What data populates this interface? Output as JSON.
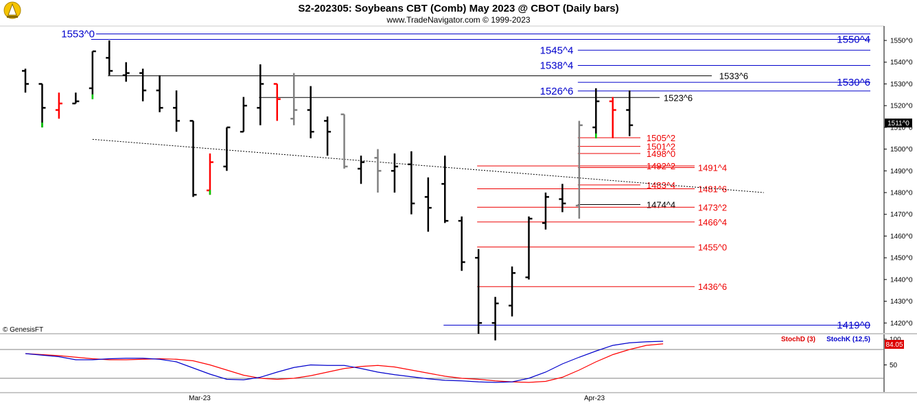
{
  "header": {
    "title": "S2-202305:  Soybeans CBT (Comb) May 2023 @ CBOT  (Daily bars)",
    "subtitle": "www.TradeNavigator.com © 1999-2023",
    "logo_icon": "trading-logo-icon"
  },
  "footer": {
    "copyright": "© GenesisFT"
  },
  "colors": {
    "background": "#ffffff",
    "bar_default": "#000000",
    "bar_gray": "#808080",
    "bar_red": "#ff0000",
    "bar_green": "#00cc00",
    "level_blue": "#0000cc",
    "level_red": "#ee0000",
    "level_black": "#000000",
    "stoch_d": "#dd0000",
    "stoch_k": "#0000cc",
    "last_price_bg": "#000000"
  },
  "last_price_tag": "1511^0",
  "chart_data": [
    {
      "type": "ohlc",
      "title": "S2-202305:  Soybeans CBT (Comb) May 2023 @ CBOT  (Daily bars)",
      "x_tick_labels": [
        "Mar-23",
        "Apr-23"
      ],
      "y_tick_labels": [
        "1550^0",
        "1540^0",
        "1530^0",
        "1520^0",
        "1510^0",
        "1500^0",
        "1490^0",
        "1480^0",
        "1470^0",
        "1460^0",
        "1450^0",
        "1440^0",
        "1430^0",
        "1420^0"
      ],
      "y_ticks": [
        1550,
        1540,
        1530,
        1520,
        1510,
        1500,
        1490,
        1480,
        1470,
        1460,
        1450,
        1440,
        1430,
        1420
      ],
      "ylim": [
        1416,
        1556
      ],
      "grid": false,
      "bars": [
        {
          "o": 1536,
          "h": 1537,
          "l": 1526,
          "c": 1530,
          "color": "black"
        },
        {
          "o": 1530,
          "h": 1530,
          "l": 1510,
          "c": 1519,
          "color": "black",
          "low_tick": "green"
        },
        {
          "o": 1518,
          "h": 1526,
          "l": 1514,
          "c": 1521,
          "color": "red"
        },
        {
          "o": 1521,
          "h": 1526,
          "l": 1521,
          "c": 1522,
          "color": "black"
        },
        {
          "o": 1528,
          "h": 1545,
          "l": 1523,
          "c": 1545,
          "color": "black",
          "low_tick": "green"
        },
        {
          "o": 1542,
          "h": 1550,
          "l": 1534,
          "c": 1536,
          "color": "black"
        },
        {
          "o": 1534,
          "h": 1540,
          "l": 1531,
          "c": 1535,
          "color": "black"
        },
        {
          "o": 1535,
          "h": 1537,
          "l": 1522,
          "c": 1527,
          "color": "black"
        },
        {
          "o": 1527,
          "h": 1534,
          "l": 1517,
          "c": 1519,
          "color": "black"
        },
        {
          "o": 1519,
          "h": 1527,
          "l": 1508,
          "c": 1513,
          "color": "black"
        },
        {
          "o": 1513,
          "h": 1513,
          "l": 1478,
          "c": 1479,
          "color": "black"
        },
        {
          "o": 1481,
          "h": 1498,
          "l": 1479,
          "c": 1494,
          "color": "red",
          "low_tick": "green"
        },
        {
          "o": 1492,
          "h": 1510,
          "l": 1490,
          "c": 1510,
          "color": "black"
        },
        {
          "o": 1508,
          "h": 1524,
          "l": 1508,
          "c": 1520,
          "color": "black"
        },
        {
          "o": 1519,
          "h": 1539,
          "l": 1511,
          "c": 1530,
          "color": "black"
        },
        {
          "o": 1530,
          "h": 1530,
          "l": 1513,
          "c": 1523,
          "color": "red"
        },
        {
          "o": 1514,
          "h": 1535,
          "l": 1511,
          "c": 1518,
          "color": "gray"
        },
        {
          "o": 1518,
          "h": 1529,
          "l": 1505,
          "c": 1508,
          "color": "black"
        },
        {
          "o": 1513,
          "h": 1515,
          "l": 1497,
          "c": 1508,
          "color": "black"
        },
        {
          "o": 1516,
          "h": 1516,
          "l": 1491,
          "c": 1492,
          "color": "gray"
        },
        {
          "o": 1491,
          "h": 1497,
          "l": 1484,
          "c": 1494,
          "color": "black"
        },
        {
          "o": 1496,
          "h": 1500,
          "l": 1480,
          "c": 1490,
          "color": "gray"
        },
        {
          "o": 1490,
          "h": 1498,
          "l": 1480,
          "c": 1492,
          "color": "black"
        },
        {
          "o": 1493,
          "h": 1499,
          "l": 1470,
          "c": 1475,
          "color": "black"
        },
        {
          "o": 1478,
          "h": 1487,
          "l": 1462,
          "c": 1473,
          "color": "black"
        },
        {
          "o": 1484,
          "h": 1497,
          "l": 1466,
          "c": 1467,
          "color": "black"
        },
        {
          "o": 1467,
          "h": 1469,
          "l": 1444,
          "c": 1448,
          "color": "black"
        },
        {
          "o": 1450,
          "h": 1454,
          "l": 1415,
          "c": 1420,
          "color": "black"
        },
        {
          "o": 1420,
          "h": 1432,
          "l": 1412,
          "c": 1429,
          "color": "black"
        },
        {
          "o": 1428,
          "h": 1446,
          "l": 1423,
          "c": 1443,
          "color": "black"
        },
        {
          "o": 1441,
          "h": 1469,
          "l": 1440,
          "c": 1468,
          "color": "black"
        },
        {
          "o": 1466,
          "h": 1480,
          "l": 1463,
          "c": 1478,
          "color": "black"
        },
        {
          "o": 1477,
          "h": 1484,
          "l": 1471,
          "c": 1475,
          "color": "black"
        },
        {
          "o": 1474,
          "h": 1513,
          "l": 1468,
          "c": 1511,
          "color": "gray"
        },
        {
          "o": 1510,
          "h": 1528,
          "l": 1505,
          "c": 1522,
          "color": "black",
          "low_tick": "green"
        },
        {
          "o": 1522,
          "h": 1524,
          "l": 1505,
          "c": 1518,
          "color": "red"
        },
        {
          "o": 1518,
          "h": 1527,
          "l": 1506,
          "c": 1511,
          "color": "black"
        }
      ],
      "trendline": {
        "from": {
          "bar": 4,
          "price": 1504.5
        },
        "to": {
          "bar": 44,
          "price": 1480
        },
        "style": "dotted"
      },
      "levels": [
        {
          "price": 1553.0,
          "label": "1553^0",
          "color": "blue",
          "from_bar": 4,
          "label_side": "left"
        },
        {
          "price": 1550.5,
          "label": "1550^4",
          "color": "blue",
          "from_bar": 4,
          "label_side": "right"
        },
        {
          "price": 1545.5,
          "label": "1545^4",
          "color": "blue",
          "from_bar": 33,
          "label_side": "mid"
        },
        {
          "price": 1538.5,
          "label": "1538^4",
          "color": "blue",
          "from_bar": 33,
          "label_side": "mid"
        },
        {
          "price": 1533.75,
          "label": "1533^6",
          "color": "black",
          "from_bar": 5,
          "label_side": "mid"
        },
        {
          "price": 1530.75,
          "label": "1530^6",
          "color": "blue",
          "from_bar": 33,
          "label_side": "right"
        },
        {
          "price": 1526.75,
          "label": "1526^6",
          "color": "blue",
          "from_bar": 33,
          "label_side": "mid"
        },
        {
          "price": 1523.75,
          "label": "1523^6",
          "color": "black",
          "from_bar": 14,
          "label_side": "mid"
        },
        {
          "price": 1505.25,
          "label": "1505^2",
          "color": "red",
          "from_bar": 33,
          "label_side": "mid"
        },
        {
          "price": 1501.25,
          "label": "1501^2",
          "color": "red",
          "from_bar": 33,
          "label_side": "mid"
        },
        {
          "price": 1498.0,
          "label": "1498^0",
          "color": "red",
          "from_bar": 33,
          "label_side": "mid"
        },
        {
          "price": 1492.25,
          "label": "1492^2",
          "color": "red",
          "from_bar": 27,
          "label_side": "mid"
        },
        {
          "price": 1491.5,
          "label": "1491^4",
          "color": "red",
          "from_bar": 33,
          "label_side": "mid"
        },
        {
          "price": 1483.5,
          "label": "1483^4",
          "color": "red",
          "from_bar": 33,
          "label_side": "mid"
        },
        {
          "price": 1481.75,
          "label": "1481^6",
          "color": "red",
          "from_bar": 27,
          "label_side": "mid"
        },
        {
          "price": 1474.5,
          "label": "1474^4",
          "color": "black",
          "from_bar": 33,
          "label_side": "mid"
        },
        {
          "price": 1473.25,
          "label": "1473^2",
          "color": "red",
          "from_bar": 27,
          "label_side": "mid"
        },
        {
          "price": 1466.5,
          "label": "1466^4",
          "color": "red",
          "from_bar": 27,
          "label_side": "mid"
        },
        {
          "price": 1455.0,
          "label": "1455^0",
          "color": "red",
          "from_bar": 27,
          "label_side": "mid"
        },
        {
          "price": 1436.75,
          "label": "1436^6",
          "color": "red",
          "from_bar": 27,
          "label_side": "mid"
        },
        {
          "price": 1419.0,
          "label": "1419^0",
          "color": "blue",
          "from_bar": 25,
          "label_side": "right"
        }
      ]
    },
    {
      "type": "line",
      "series": [
        {
          "name": "StochD (3)",
          "color": "red",
          "values": [
            72,
            70,
            68,
            65,
            62,
            60,
            60,
            61,
            62,
            61,
            58,
            50,
            40,
            30,
            24,
            22,
            24,
            29,
            36,
            43,
            47,
            49,
            46,
            40,
            34,
            28,
            24,
            22,
            19,
            17,
            16,
            18,
            26,
            40,
            56,
            70,
            80,
            88,
            91
          ]
        },
        {
          "name": "StochK (12,5)",
          "color": "blue",
          "values": [
            72,
            69,
            66,
            60,
            60,
            62,
            63,
            63,
            61,
            56,
            44,
            32,
            22,
            21,
            26,
            36,
            45,
            50,
            49,
            49,
            43,
            36,
            31,
            27,
            23,
            20,
            19,
            17,
            16,
            17,
            24,
            36,
            52,
            65,
            77,
            88,
            93,
            95,
            96
          ]
        }
      ],
      "legend": "top-right",
      "y_tick_labels": [
        "100",
        "84.05",
        "50"
      ],
      "last_value_tag": "84.05",
      "ylim": [
        0,
        100
      ]
    }
  ]
}
